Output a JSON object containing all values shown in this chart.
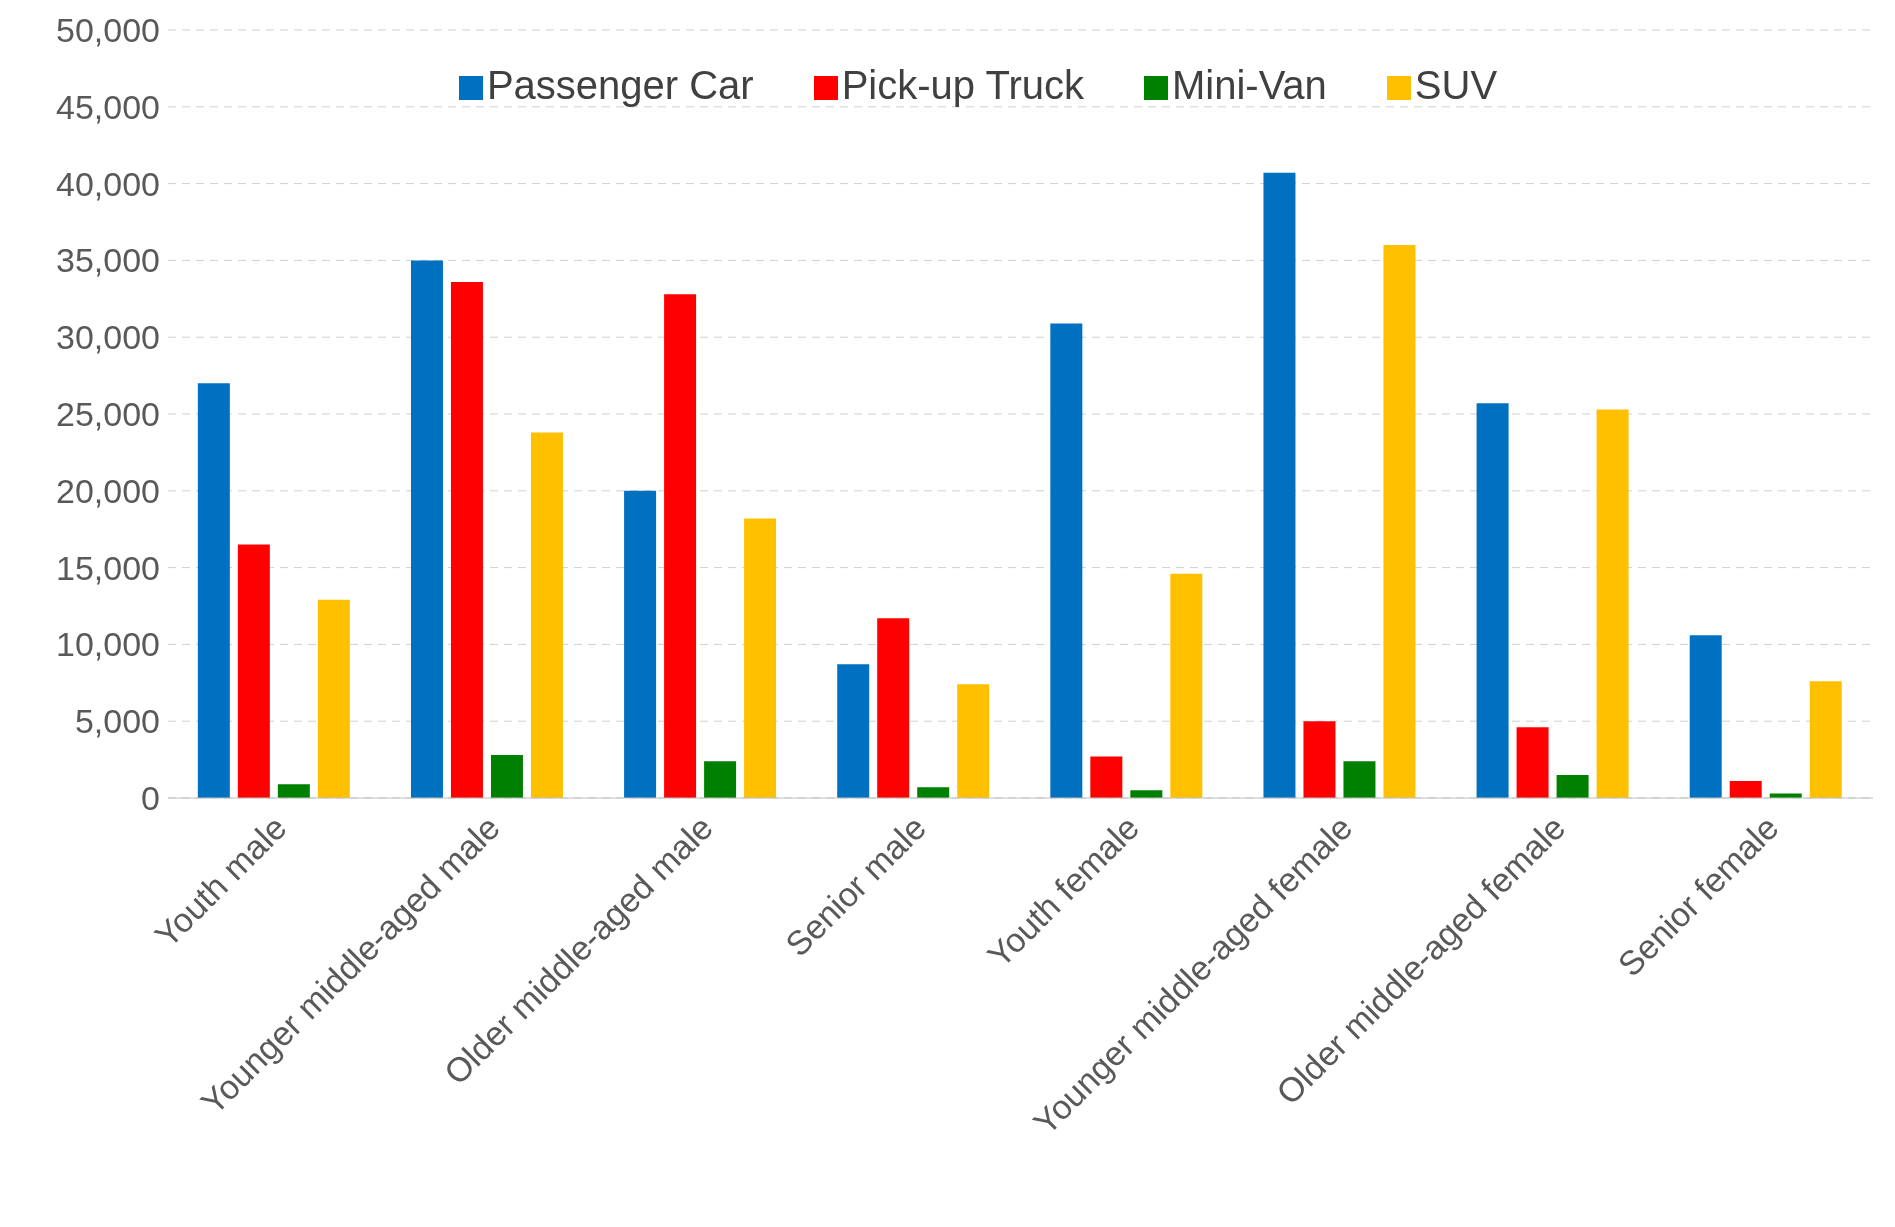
{
  "chart_data": {
    "type": "bar",
    "categories": [
      "Youth male",
      "Younger middle-aged male",
      "Older middle-aged male",
      "Senior male",
      "Youth female",
      "Younger middle-aged female",
      "Older middle-aged female",
      "Senior female"
    ],
    "series": [
      {
        "name": "Passenger Car",
        "color": "#0070c0",
        "values": [
          27000,
          35000,
          20000,
          8700,
          30900,
          40700,
          25700,
          10600
        ]
      },
      {
        "name": "Pick-up Truck",
        "color": "#ff0000",
        "values": [
          16500,
          33600,
          32800,
          11700,
          2700,
          5000,
          4600,
          1100
        ]
      },
      {
        "name": "Mini-Van",
        "color": "#008000",
        "values": [
          900,
          2800,
          2400,
          700,
          500,
          2400,
          1500,
          300
        ]
      },
      {
        "name": "SUV",
        "color": "#ffc000",
        "values": [
          12900,
          23800,
          18200,
          7400,
          14600,
          36000,
          25300,
          7600
        ]
      }
    ],
    "ylim": [
      0,
      50000
    ],
    "yticks": [
      0,
      {
        "value": 5000,
        "label": "5,000"
      },
      {
        "value": 10000,
        "label": "10,000"
      },
      {
        "value": 15000,
        "label": "15,000"
      },
      {
        "value": 20000,
        "label": "20,000"
      },
      {
        "value": 25000,
        "label": "25,000"
      },
      {
        "value": 30000,
        "label": "30,000"
      },
      {
        "value": 35000,
        "label": "35,000"
      },
      {
        "value": 40000,
        "label": "40,000"
      },
      {
        "value": 45000,
        "label": "45,000"
      },
      {
        "value": 50000,
        "label": "50,000"
      }
    ],
    "grid": "y",
    "legend": "top"
  }
}
